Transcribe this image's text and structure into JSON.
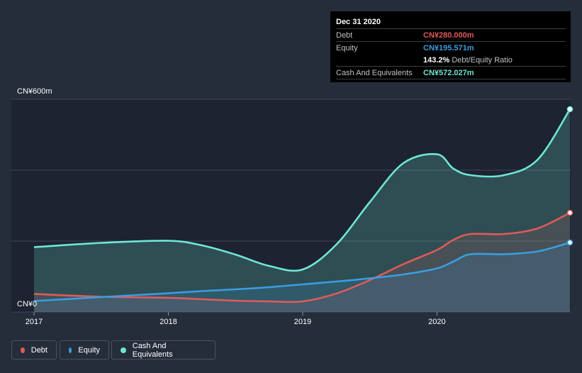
{
  "chart_data": {
    "type": "area",
    "title": "",
    "xlabel": "",
    "ylabel": "",
    "ylim": [
      0,
      600
    ],
    "y_ticks": [
      {
        "value": 600,
        "label": "CN¥600m"
      },
      {
        "value": 0,
        "label": "CN¥0"
      }
    ],
    "x_ticks": [
      {
        "value": 2017,
        "label": "2017"
      },
      {
        "value": 2018,
        "label": "2018"
      },
      {
        "value": 2019,
        "label": "2019"
      },
      {
        "value": 2020,
        "label": "2020"
      }
    ],
    "xlim": [
      2017,
      2020.99
    ],
    "series": [
      {
        "name": "Cash And Equivalents",
        "color": "#6ee7d4",
        "points": [
          [
            2017,
            183
          ],
          [
            2017.5,
            195
          ],
          [
            2018,
            201
          ],
          [
            2018.25,
            188
          ],
          [
            2018.5,
            162
          ],
          [
            2018.75,
            130
          ],
          [
            2019,
            120
          ],
          [
            2019.25,
            190
          ],
          [
            2019.5,
            310
          ],
          [
            2019.75,
            420
          ],
          [
            2020,
            445
          ],
          [
            2020.12,
            405
          ],
          [
            2020.25,
            386
          ],
          [
            2020.5,
            386
          ],
          [
            2020.75,
            430
          ],
          [
            2020.99,
            572
          ]
        ]
      },
      {
        "name": "Debt",
        "color": "#e05a5a",
        "points": [
          [
            2017,
            51
          ],
          [
            2017.5,
            43
          ],
          [
            2018,
            40
          ],
          [
            2018.25,
            36
          ],
          [
            2018.5,
            32
          ],
          [
            2018.75,
            30
          ],
          [
            2019,
            30
          ],
          [
            2019.25,
            52
          ],
          [
            2019.5,
            90
          ],
          [
            2019.75,
            135
          ],
          [
            2020,
            175
          ],
          [
            2020.12,
            203
          ],
          [
            2020.25,
            220
          ],
          [
            2020.5,
            220
          ],
          [
            2020.75,
            236
          ],
          [
            2020.99,
            280
          ]
        ]
      },
      {
        "name": "Equity",
        "color": "#3b9de1",
        "points": [
          [
            2017,
            31
          ],
          [
            2017.5,
            42
          ],
          [
            2018,
            53
          ],
          [
            2018.25,
            59
          ],
          [
            2018.5,
            64
          ],
          [
            2018.75,
            70
          ],
          [
            2019,
            78
          ],
          [
            2019.25,
            86
          ],
          [
            2019.5,
            95
          ],
          [
            2019.75,
            106
          ],
          [
            2020,
            123
          ],
          [
            2020.12,
            142
          ],
          [
            2020.25,
            163
          ],
          [
            2020.5,
            163
          ],
          [
            2020.75,
            171
          ],
          [
            2020.99,
            196
          ]
        ]
      }
    ],
    "legend": [
      {
        "name": "Debt",
        "color": "#e05a5a"
      },
      {
        "name": "Equity",
        "color": "#3b9de1"
      },
      {
        "name": "Cash And Equivalents",
        "color": "#6ee7d4"
      }
    ],
    "tooltip": {
      "date": "Dec 31 2020",
      "debt_label": "Debt",
      "debt_value": "CN¥280.000m",
      "equity_label": "Equity",
      "equity_value": "CN¥195.571m",
      "ratio_value": "143.2%",
      "ratio_label": "Debt/Equity Ratio",
      "cash_label": "Cash And Equivalents",
      "cash_value": "CN¥572.027m"
    }
  },
  "colors": {
    "background": "#252d3a",
    "plot_background": "#1d2330",
    "grid": "#3f4654",
    "debt": "#e05a5a",
    "equity": "#3b9de1",
    "cash": "#6ee7d4"
  }
}
